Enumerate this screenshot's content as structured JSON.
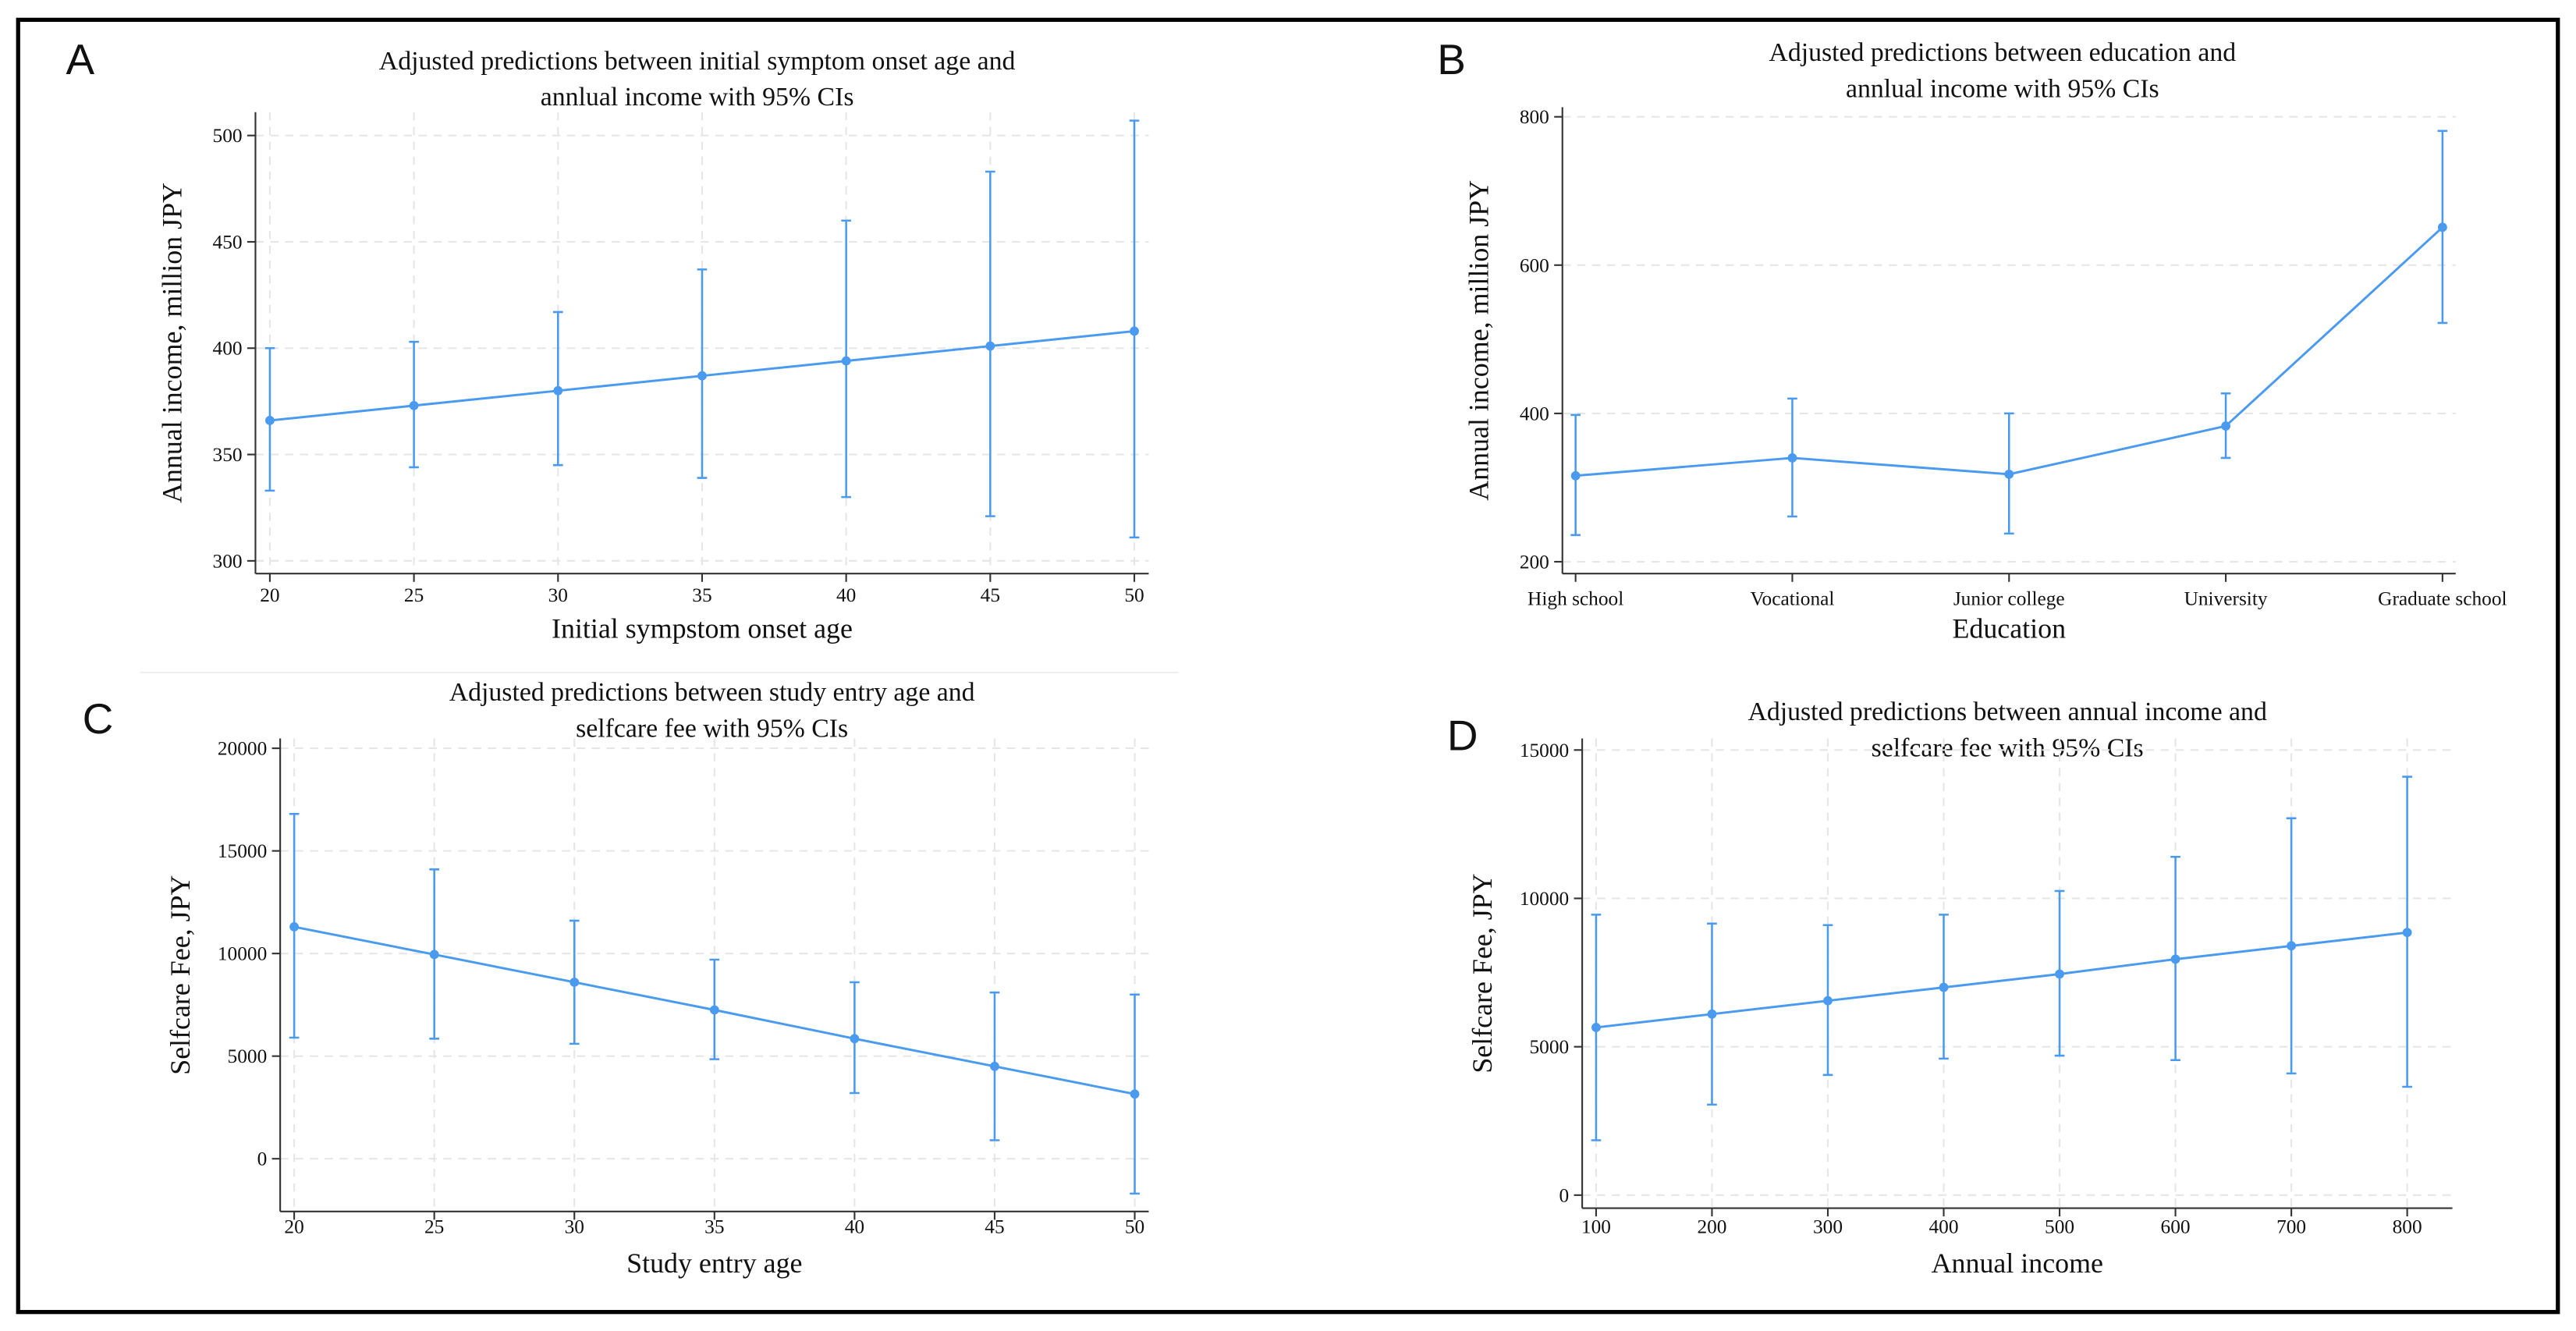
{
  "chart_data": [
    {
      "type": "line",
      "panel_label": "A",
      "title": [
        "Adjusted predictions between initial symptom onset age and",
        "annlual income with 95% CIs"
      ],
      "x_label": "Initial sympstom onset age",
      "y_label": "Annual income, million JPY",
      "x": [
        20,
        25,
        30,
        35,
        40,
        45,
        50
      ],
      "series": [
        {
          "color": "#4a9af0",
          "values": [
            366,
            373,
            380,
            387,
            394,
            401,
            408
          ],
          "ci_low": [
            333,
            344,
            345,
            339,
            330,
            321,
            311
          ],
          "ci_high": [
            400,
            403,
            417,
            437,
            460,
            483,
            507
          ]
        }
      ],
      "xlim": [
        19.5,
        50.5
      ],
      "xticks": [
        20,
        25,
        30,
        35,
        40,
        45,
        50
      ],
      "ylim": [
        294,
        511
      ],
      "yticks": [
        300,
        350,
        400,
        450,
        500
      ],
      "grid": true
    },
    {
      "type": "line",
      "panel_label": "B",
      "title": [
        "Adjusted predictions between education and",
        "annlual income with 95% CIs"
      ],
      "x_label": "Education",
      "y_label": "Annual income, million JPY",
      "categories": [
        "High school",
        "Vocational",
        "Junior college",
        "University",
        "Graduate school"
      ],
      "series": [
        {
          "color": "#4a9af0",
          "values": [
            316,
            340,
            318,
            383,
            651
          ],
          "ci_low": [
            236,
            261,
            238,
            340,
            522
          ],
          "ci_high": [
            398,
            420,
            400,
            427,
            781
          ]
        }
      ],
      "ylim": [
        184,
        813
      ],
      "yticks": [
        200,
        400,
        600,
        800
      ],
      "grid": true
    },
    {
      "type": "line",
      "panel_label": "C",
      "title": [
        "Adjusted predictions between study entry age and",
        "selfcare fee with 95% CIs"
      ],
      "x_label": "Study entry age",
      "y_label": "Selfcare Fee, JPY",
      "x": [
        20,
        25,
        30,
        35,
        40,
        45,
        50
      ],
      "series": [
        {
          "color": "#4a9af0",
          "values": [
            11300,
            9950,
            8600,
            7250,
            5850,
            4500,
            3150
          ],
          "ci_low": [
            5900,
            5850,
            5600,
            4850,
            3200,
            900,
            -1700
          ],
          "ci_high": [
            16800,
            14100,
            11600,
            9700,
            8600,
            8100,
            8000
          ]
        }
      ],
      "xlim": [
        19.5,
        50.5
      ],
      "xticks": [
        20,
        25,
        30,
        35,
        40,
        45,
        50
      ],
      "ylim": [
        -2570,
        20480
      ],
      "yticks": [
        0,
        5000,
        10000,
        15000,
        20000
      ],
      "grid": true
    },
    {
      "type": "line",
      "panel_label": "D",
      "title": [
        "Adjusted predictions between annual income and",
        "selfcare fee with 95% CIs"
      ],
      "x_label": "Annual income",
      "y_label": "Selfcare Fee, JPY",
      "x": [
        100,
        200,
        300,
        400,
        500,
        600,
        700,
        800
      ],
      "series": [
        {
          "color": "#4a9af0",
          "values": [
            5650,
            6100,
            6550,
            7000,
            7450,
            7950,
            8400,
            8850
          ],
          "ci_low": [
            1850,
            3050,
            4050,
            4600,
            4700,
            4550,
            4100,
            3650
          ],
          "ci_high": [
            9450,
            9150,
            9100,
            9450,
            10250,
            11400,
            12700,
            14100
          ]
        }
      ],
      "xlim": [
        88,
        839
      ],
      "xticks": [
        100,
        200,
        300,
        400,
        500,
        600,
        700,
        800
      ],
      "ylim": [
        -440,
        15390
      ],
      "yticks": [
        0,
        5000,
        10000,
        15000
      ],
      "grid": true
    }
  ]
}
